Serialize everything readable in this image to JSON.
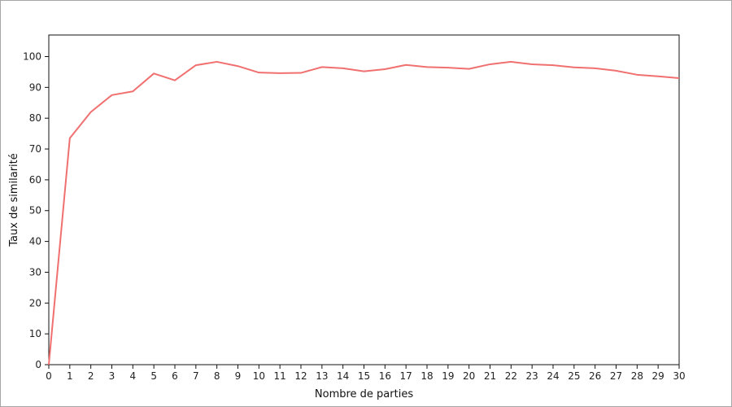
{
  "chart_data": {
    "type": "line",
    "title": "",
    "xlabel": "Nombre de parties",
    "ylabel": "Taux de similarité",
    "xlim": [
      0,
      30
    ],
    "ylim": [
      0,
      107
    ],
    "x_ticks": [
      0,
      1,
      2,
      3,
      4,
      5,
      6,
      7,
      8,
      9,
      10,
      11,
      12,
      13,
      14,
      15,
      16,
      17,
      18,
      19,
      20,
      21,
      22,
      23,
      24,
      25,
      26,
      27,
      28,
      29,
      30
    ],
    "y_ticks": [
      0,
      10,
      20,
      30,
      40,
      50,
      60,
      70,
      80,
      90,
      100
    ],
    "grid": false,
    "legend": "none",
    "series": [
      {
        "color": "#f07070",
        "x": [
          0,
          1,
          2,
          3,
          4,
          5,
          6,
          7,
          8,
          9,
          10,
          11,
          12,
          13,
          14,
          15,
          16,
          17,
          18,
          19,
          20,
          21,
          22,
          23,
          24,
          25,
          26,
          27,
          28,
          29,
          30
        ],
        "y": [
          0,
          73.5,
          82,
          87.5,
          88.7,
          94.5,
          92.3,
          97.2,
          98.3,
          96.9,
          94.8,
          94.6,
          94.7,
          96.6,
          96.2,
          95.2,
          95.9,
          97.3,
          96.6,
          96.4,
          96,
          97.5,
          98.3,
          97.5,
          97.2,
          96.5,
          96.2,
          95.4,
          94.1,
          93.6,
          93
        ]
      }
    ]
  }
}
